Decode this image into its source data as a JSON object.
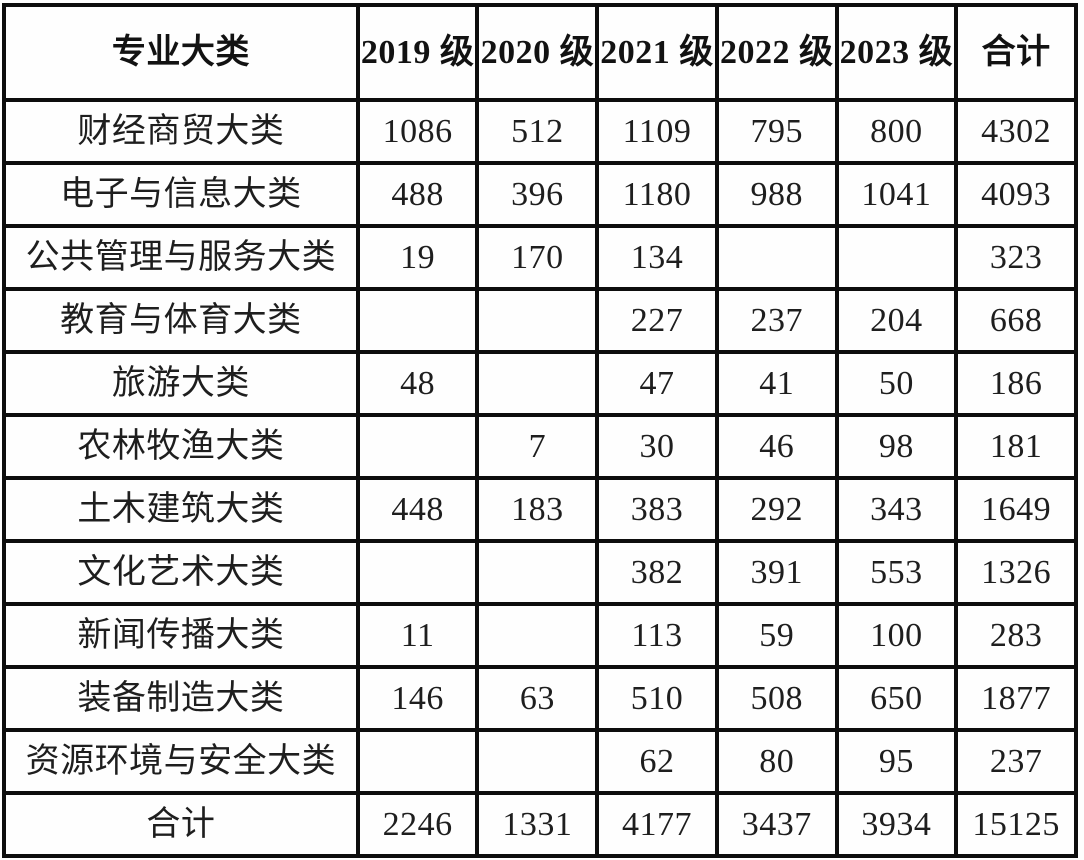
{
  "page": {
    "background_color": "#fefefe",
    "border_color": "#0d0d0d",
    "text_color": "#1e1e1e"
  },
  "table": {
    "headers": [
      "专业大类",
      "2019 级",
      "2020 级",
      "2021 级",
      "2022 级",
      "2023 级",
      "合计"
    ],
    "rows": [
      {
        "category": "财经商贸大类",
        "values": [
          "1086",
          "512",
          "1109",
          "795",
          "800",
          "4302"
        ]
      },
      {
        "category": "电子与信息大类",
        "values": [
          "488",
          "396",
          "1180",
          "988",
          "1041",
          "4093"
        ]
      },
      {
        "category": "公共管理与服务大类",
        "values": [
          "19",
          "170",
          "134",
          "",
          "",
          "323"
        ]
      },
      {
        "category": "教育与体育大类",
        "values": [
          "",
          "",
          "227",
          "237",
          "204",
          "668"
        ]
      },
      {
        "category": "旅游大类",
        "values": [
          "48",
          "",
          "47",
          "41",
          "50",
          "186"
        ]
      },
      {
        "category": "农林牧渔大类",
        "values": [
          "",
          "7",
          "30",
          "46",
          "98",
          "181"
        ]
      },
      {
        "category": "土木建筑大类",
        "values": [
          "448",
          "183",
          "383",
          "292",
          "343",
          "1649"
        ]
      },
      {
        "category": "文化艺术大类",
        "values": [
          "",
          "",
          "382",
          "391",
          "553",
          "1326"
        ]
      },
      {
        "category": "新闻传播大类",
        "values": [
          "11",
          "",
          "113",
          "59",
          "100",
          "283"
        ]
      },
      {
        "category": "装备制造大类",
        "values": [
          "146",
          "63",
          "510",
          "508",
          "650",
          "1877"
        ]
      },
      {
        "category": "资源环境与安全大类",
        "values": [
          "",
          "",
          "62",
          "80",
          "95",
          "237"
        ]
      },
      {
        "category": "合计",
        "values": [
          "2246",
          "1331",
          "4177",
          "3437",
          "3934",
          "15125"
        ]
      }
    ],
    "total_row_label": "合计"
  }
}
